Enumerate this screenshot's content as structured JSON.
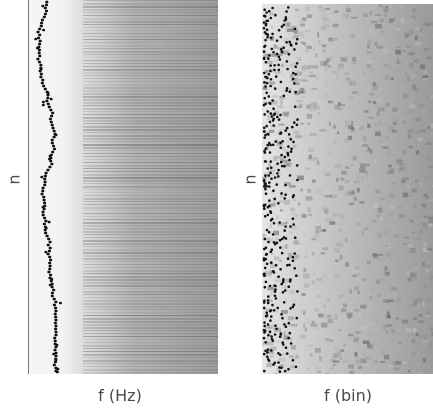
{
  "panels": [
    {
      "xlabel": "f (Hz)",
      "ylabel": "n"
    },
    {
      "xlabel": "f (bin)",
      "ylabel": "n"
    }
  ],
  "colors": {
    "background": "#ffffff",
    "markers": "#111111",
    "gray_light": "#f4f4f4",
    "gray_dark": "#8a8a8a"
  }
}
